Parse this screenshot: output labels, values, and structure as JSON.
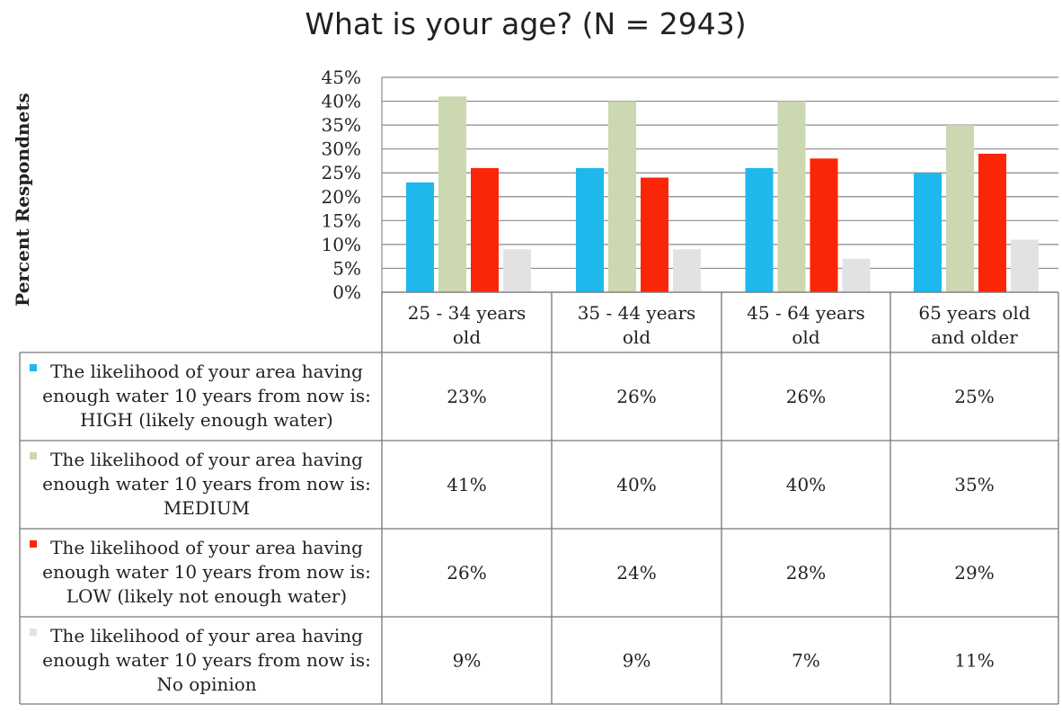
{
  "chart_data": {
    "type": "bar",
    "title": "What is your age? (N = 2943)",
    "ylabel": "Percent Respondnets",
    "xlabel": "",
    "ylim": [
      0,
      45
    ],
    "y_ticks": [
      "45%",
      "40%",
      "35%",
      "30%",
      "25%",
      "20%",
      "15%",
      "10%",
      "5%",
      "0%"
    ],
    "grid": true,
    "legend_placement": "data table below chart",
    "categories": [
      [
        "25 - 34 years",
        "old"
      ],
      [
        "35 - 44 years",
        "old"
      ],
      [
        "45 - 64 years",
        "old"
      ],
      [
        "65 years old",
        "and older"
      ]
    ],
    "series": [
      {
        "name": [
          "The likelihood of your area having",
          "enough water 10 years from now is:",
          "HIGH (likely enough water)"
        ],
        "color": "#1eb8ec",
        "values": [
          23,
          26,
          26,
          25
        ],
        "labels": [
          "23%",
          "26%",
          "26%",
          "25%"
        ]
      },
      {
        "name": [
          "The likelihood of your area having",
          "enough water 10 years from now is:",
          "MEDIUM"
        ],
        "color": "#cbd8b0",
        "values": [
          41,
          40,
          40,
          35
        ],
        "labels": [
          "41%",
          "40%",
          "40%",
          "35%"
        ]
      },
      {
        "name": [
          "The likelihood of your area having",
          "enough water 10 years from now is:",
          "LOW (likely not enough water)"
        ],
        "color": "#fb2608",
        "values": [
          26,
          24,
          28,
          29
        ],
        "labels": [
          "26%",
          "24%",
          "28%",
          "29%"
        ]
      },
      {
        "name": [
          "The likelihood of your area having",
          "enough water 10 years from now is:",
          "No opinion"
        ],
        "color": "#e2e2e4",
        "values": [
          9,
          9,
          7,
          11
        ],
        "labels": [
          "9%",
          "9%",
          "7%",
          "11%"
        ]
      }
    ]
  }
}
